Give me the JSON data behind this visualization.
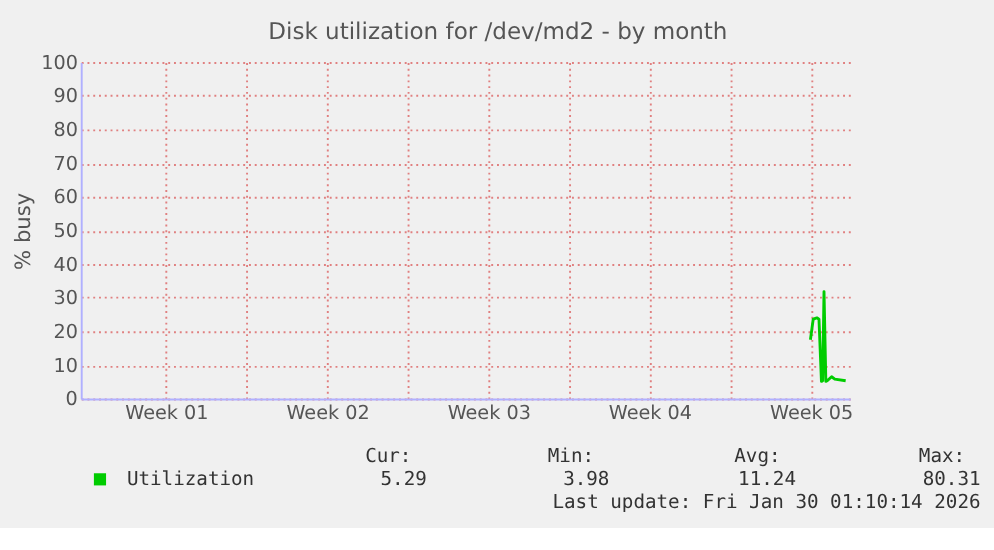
{
  "chart_data": {
    "type": "line",
    "title": "Disk utilization for /dev/md2 - by month",
    "ylabel": "% busy",
    "x": [
      "2026-01-28T11:45",
      "2026-01-28T14:40",
      "2026-01-28T18:30",
      "2026-01-28T20:40",
      "2026-01-28T23:15",
      "2026-01-29T00:30",
      "2026-01-29T01:55",
      "2026-01-29T03:50",
      "2026-01-29T05:15",
      "2026-01-29T09:50",
      "2026-01-29T13:10",
      "2026-01-30T00:30"
    ],
    "series": [
      {
        "name": "Utilization",
        "color": "#00cc00",
        "values": [
          17.5,
          23.6,
          24,
          23.6,
          5.1,
          5.3,
          31.8,
          5.1,
          5.3,
          6.5,
          5.8,
          5.3
        ]
      }
    ],
    "xlim": [
      "2025-12-27T19:12",
      "2026-01-30T04:48"
    ],
    "xticks": [
      {
        "value": "2026-01-04",
        "label": null
      },
      {
        "value": "2026-01-11",
        "label": null
      },
      {
        "value": "2026-01-18",
        "label": null
      },
      {
        "value": "2026-01-25",
        "label": null
      },
      {
        "value": "2025-12-31T12:00",
        "label": "Week 01"
      },
      {
        "value": "2026-01-07T12:00",
        "label": "Week 02"
      },
      {
        "value": "2026-01-14T12:00",
        "label": "Week 03"
      },
      {
        "value": "2026-01-21T12:00",
        "label": "Week 04"
      },
      {
        "value": "2026-01-28T12:00",
        "label": "Week 05"
      }
    ],
    "ylim": [
      0,
      100
    ],
    "yticks": [
      0,
      10,
      20,
      30,
      40,
      50,
      60,
      70,
      80,
      90,
      100
    ],
    "grid": true,
    "legend": "bottom",
    "line_style": "solid",
    "marker": "none",
    "annotations": [
      "Cur:",
      "5.29",
      "Min:",
      "3.98",
      "Avg:",
      "11.24",
      "Max:",
      "80.31",
      "Last update: Fri Jan 30 01:10:14 2026"
    ]
  }
}
